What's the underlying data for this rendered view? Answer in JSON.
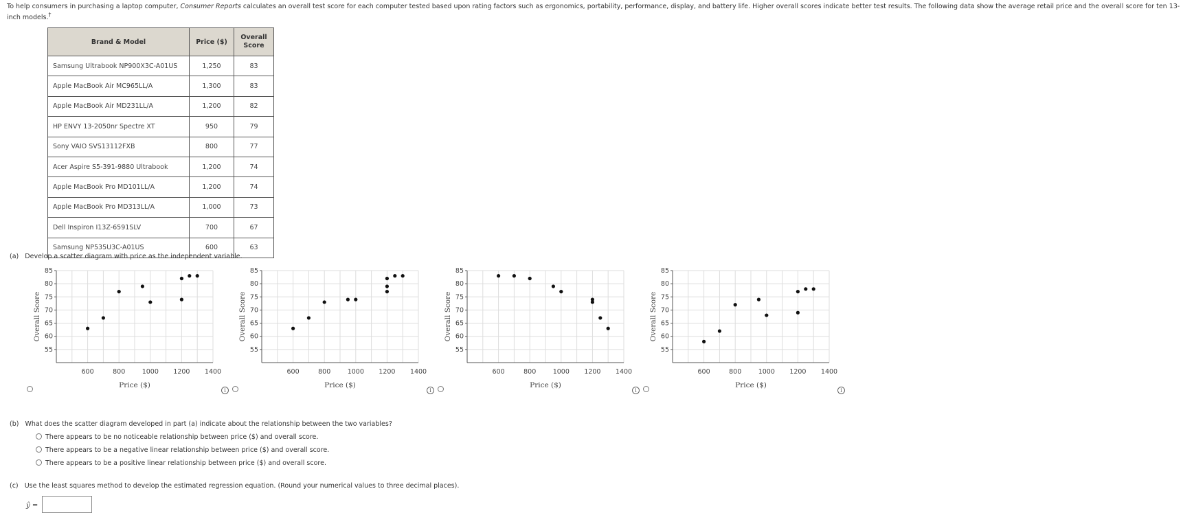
{
  "intro": {
    "text_before": "To help consumers in purchasing a laptop computer, ",
    "source": "Consumer Reports",
    "text_after": " calculates an overall test score for each computer tested based upon rating factors such as ergonomics, portability, performance, display, and battery life. Higher overall scores indicate better test results. The following data show the average retail price and the overall score for ten 13-inch models.",
    "dagger": "†"
  },
  "table": {
    "headers": [
      "Brand & Model",
      "Price ($)",
      "Overall Score"
    ],
    "rows": [
      {
        "brand": "Samsung Ultrabook NP900X3C-A01US",
        "price": "1,250",
        "score": "83"
      },
      {
        "brand": "Apple MacBook Air MC965LL/A",
        "price": "1,300",
        "score": "83"
      },
      {
        "brand": "Apple MacBook Air MD231LL/A",
        "price": "1,200",
        "score": "82"
      },
      {
        "brand": "HP ENVY 13-2050nr Spectre XT",
        "price": "950",
        "score": "79"
      },
      {
        "brand": "Sony VAIO SVS13112FXB",
        "price": "800",
        "score": "77"
      },
      {
        "brand": "Acer Aspire S5-391-9880 Ultrabook",
        "price": "1,200",
        "score": "74"
      },
      {
        "brand": "Apple MacBook Pro MD101LL/A",
        "price": "1,200",
        "score": "74"
      },
      {
        "brand": "Apple MacBook Pro MD313LL/A",
        "price": "1,000",
        "score": "73"
      },
      {
        "brand": "Dell Inspiron I13Z-6591SLV",
        "price": "700",
        "score": "67"
      },
      {
        "brand": "Samsung NP535U3C-A01US",
        "price": "600",
        "score": "63"
      }
    ]
  },
  "part_a": {
    "label": "(a)",
    "text": "Develop a scatter diagram with price as the independent variable."
  },
  "chart_data": [
    {
      "type": "scatter",
      "xlabel": "Price ($)",
      "ylabel": "Overall Score",
      "xlim": [
        400,
        1400
      ],
      "ylim": [
        50,
        85
      ],
      "xticks": [
        600,
        800,
        1000,
        1200,
        1400
      ],
      "yticks": [
        55,
        60,
        65,
        70,
        75,
        80,
        85
      ],
      "grid": true,
      "x": [
        600,
        700,
        800,
        950,
        1000,
        1200,
        1200,
        1250,
        1300
      ],
      "y": [
        63,
        67,
        77,
        79,
        73,
        74,
        82,
        83,
        83
      ]
    },
    {
      "type": "scatter",
      "xlabel": "Price ($)",
      "ylabel": "Overall Score",
      "xlim": [
        400,
        1400
      ],
      "ylim": [
        50,
        85
      ],
      "xticks": [
        600,
        800,
        1000,
        1200,
        1400
      ],
      "yticks": [
        55,
        60,
        65,
        70,
        75,
        80,
        85
      ],
      "grid": true,
      "x": [
        600,
        700,
        800,
        950,
        1000,
        1200,
        1200,
        1200,
        1250,
        1300
      ],
      "y": [
        63,
        67,
        73,
        74,
        74,
        77,
        79,
        82,
        83,
        83
      ]
    },
    {
      "type": "scatter",
      "xlabel": "Price ($)",
      "ylabel": "Overall Score",
      "xlim": [
        400,
        1400
      ],
      "ylim": [
        50,
        85
      ],
      "xticks": [
        600,
        800,
        1000,
        1200,
        1400
      ],
      "yticks": [
        55,
        60,
        65,
        70,
        75,
        80,
        85
      ],
      "grid": true,
      "x": [
        600,
        700,
        800,
        950,
        1000,
        1200,
        1200,
        1250,
        1300
      ],
      "y": [
        83,
        83,
        82,
        79,
        77,
        74,
        73,
        67,
        63
      ]
    },
    {
      "type": "scatter",
      "xlabel": "Price ($)",
      "ylabel": "Overall Score",
      "xlim": [
        400,
        1400
      ],
      "ylim": [
        50,
        85
      ],
      "xticks": [
        600,
        800,
        1000,
        1200,
        1400
      ],
      "yticks": [
        55,
        60,
        65,
        70,
        75,
        80,
        85
      ],
      "grid": true,
      "x": [
        600,
        700,
        800,
        950,
        1000,
        1200,
        1200,
        1250,
        1300
      ],
      "y": [
        58,
        62,
        72,
        74,
        68,
        69,
        77,
        78,
        78
      ]
    }
  ],
  "part_b": {
    "label": "(b)",
    "text": "What does the scatter diagram developed in part (a) indicate about the relationship between the two variables?",
    "options": [
      "There appears to be no noticeable relationship between price ($) and overall score.",
      "There appears to be a negative linear relationship between price ($) and overall score.",
      "There appears to be a positive linear relationship between price ($) and overall score."
    ]
  },
  "part_c": {
    "label": "(c)",
    "text": "Use the least squares method to develop the estimated regression equation. (Round your numerical values to three decimal places).",
    "yhat": "ŷ =",
    "answer": ""
  },
  "info_glyph": "i"
}
